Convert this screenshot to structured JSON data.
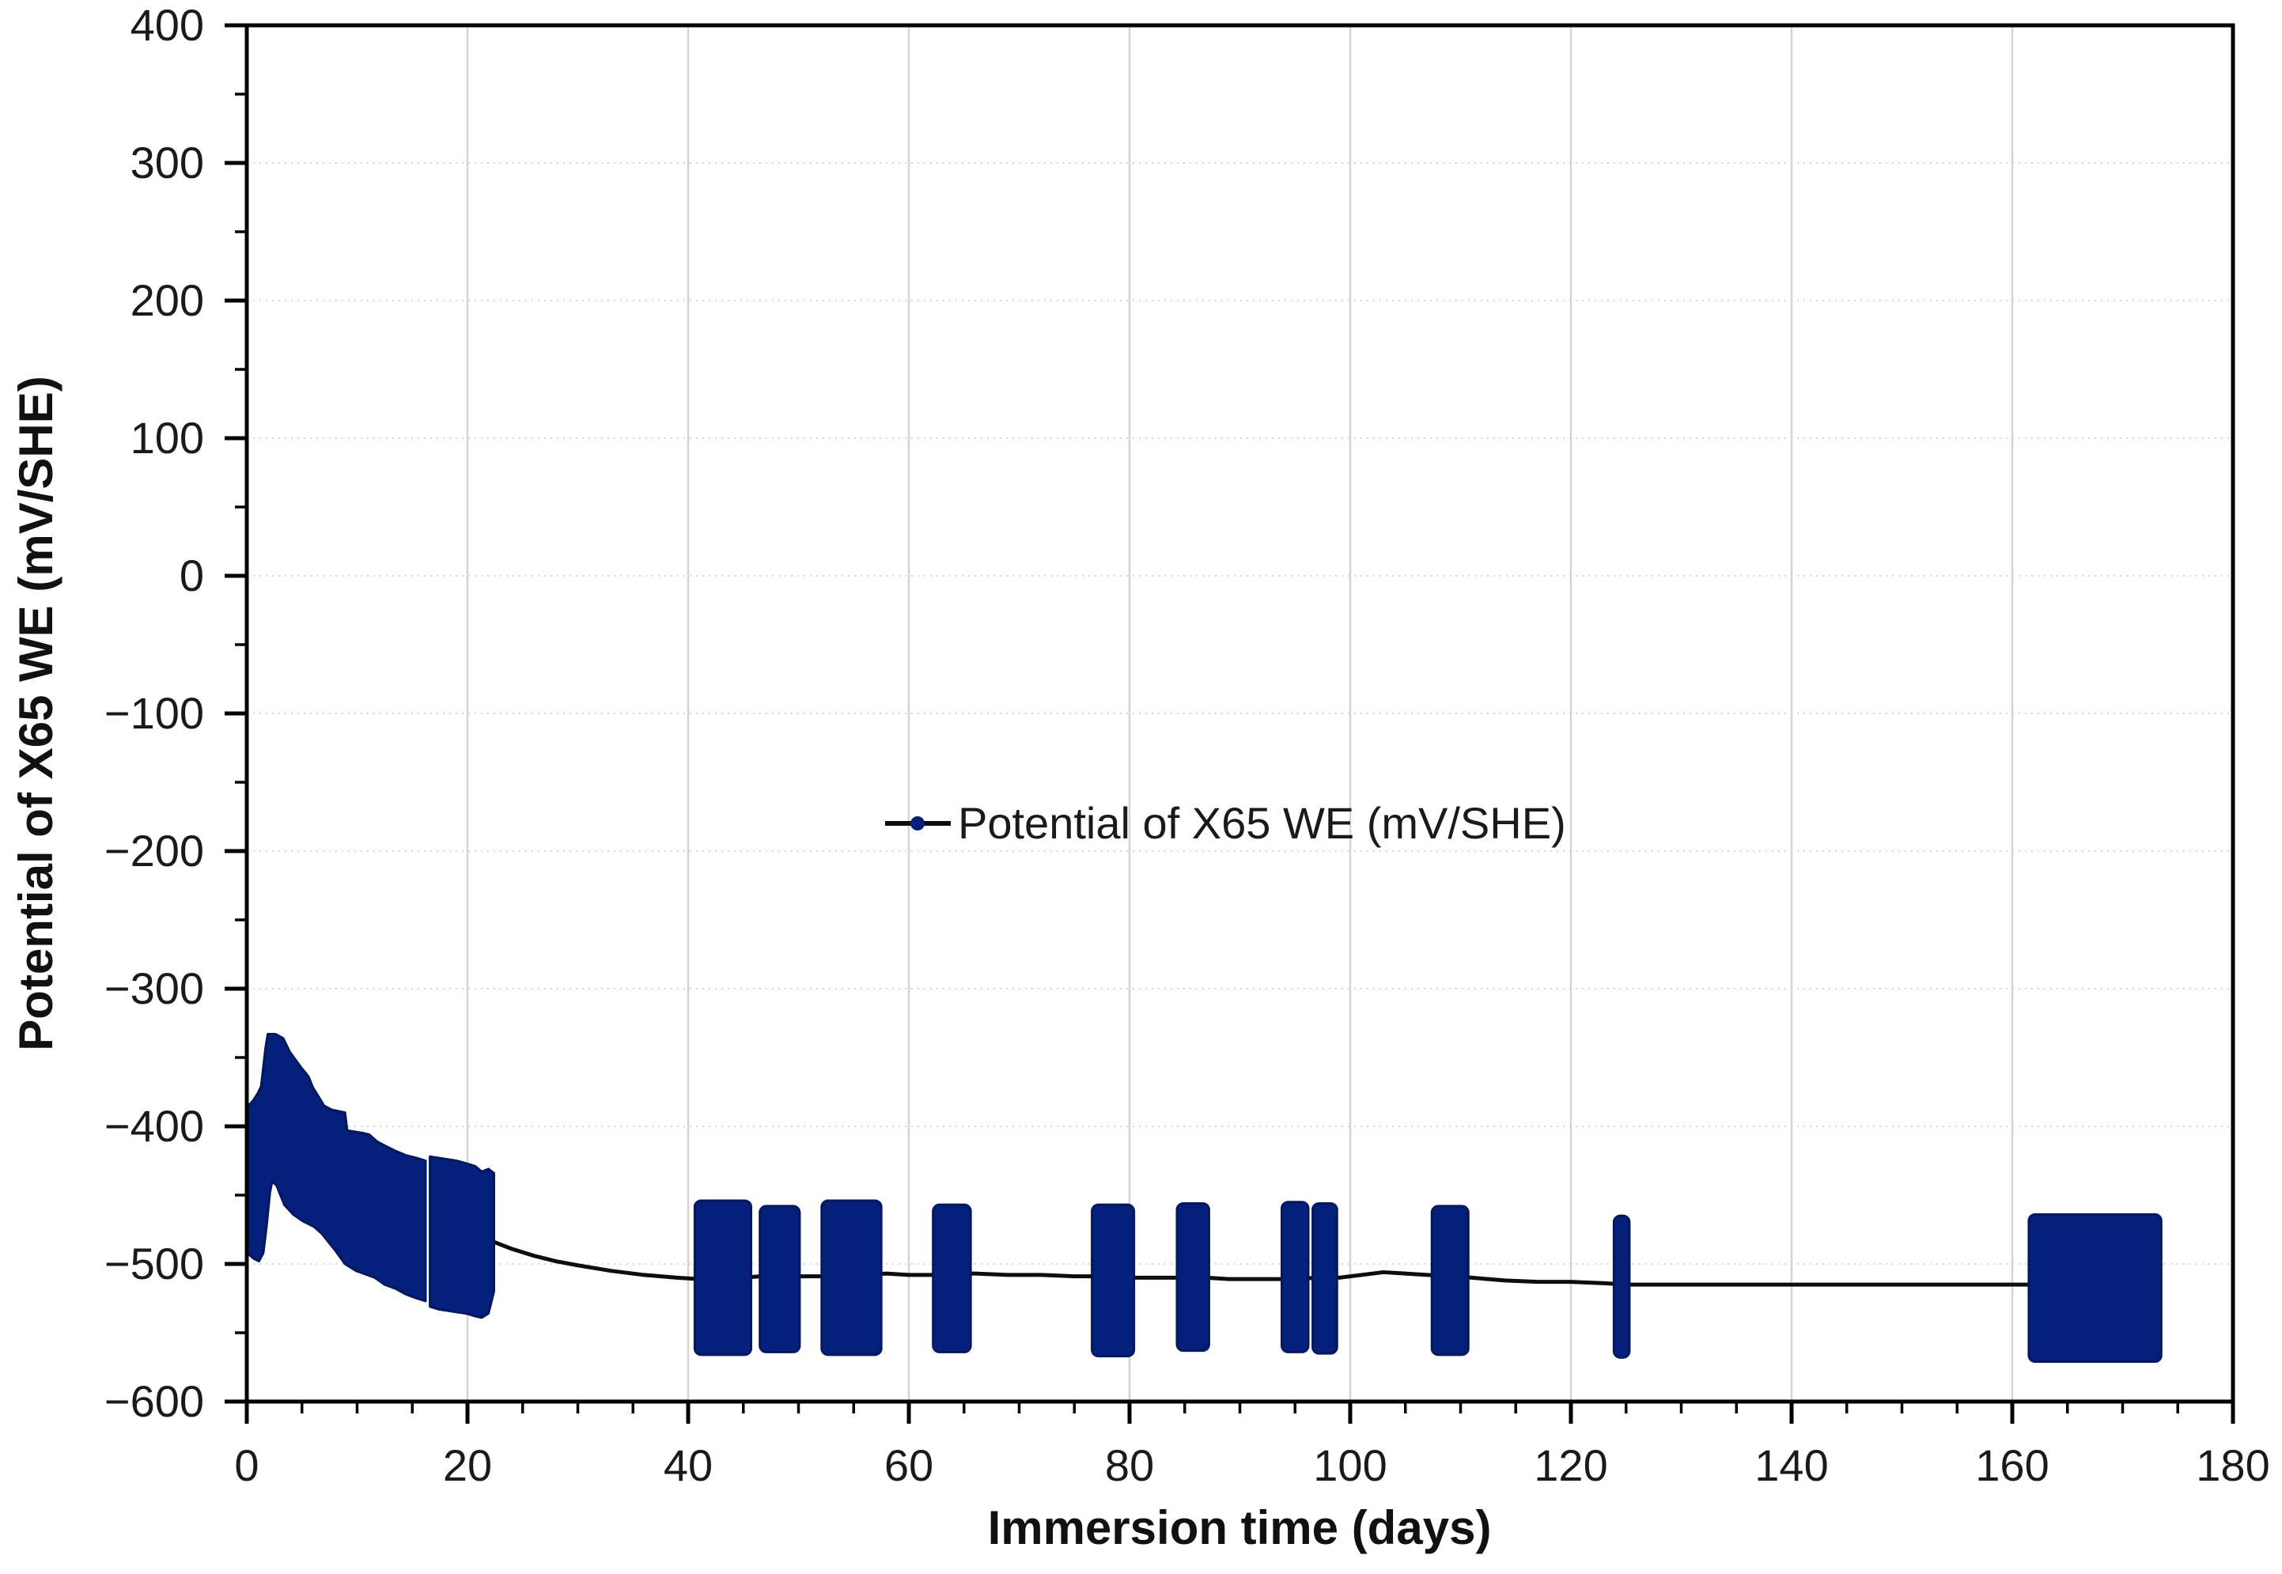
{
  "chart_data": {
    "type": "line",
    "title": "",
    "xlabel": "Immersion time (days)",
    "ylabel": "Potential of X65 WE (mV/SHE)",
    "xlim": [
      0,
      180
    ],
    "ylim": [
      -600,
      400
    ],
    "x_major_ticks": [
      0,
      20,
      40,
      60,
      80,
      100,
      120,
      140,
      160,
      180
    ],
    "x_minor_step": 5,
    "y_major_ticks": [
      400,
      300,
      200,
      100,
      0,
      -100,
      -200,
      -300,
      -400,
      -500,
      -600
    ],
    "y_minor_step": 50,
    "grid": {
      "vertical_style": "solid",
      "horizontal_style": "dotted",
      "color": "#d4d4d4"
    },
    "legend": {
      "label": "Potential of X65 WE (mV/SHE)",
      "marker": "black line with navy dot",
      "location": "center of plot area, above -200 gridline"
    },
    "colors": {
      "series_fill": "#04207a",
      "series_edge": "#03185e",
      "line": "#0d0d0d",
      "axis": "#000000",
      "grid": "#d4d4d4",
      "tick_label": "#1a1a1a",
      "title": "#111111"
    },
    "series": [
      {
        "name": "Potential of X65 WE (mV/SHE)",
        "description": "Dense noisy potential oscillations rendered as solid navy bands/bars; a thin black line of sparse readings connects measurement periods",
        "noise_band_segments": [
          {
            "top": [
              [
                0.05,
                -386
              ],
              [
                0.6,
                -381
              ],
              [
                1.0,
                -376
              ],
              [
                1.3,
                -371
              ],
              [
                1.5,
                -357
              ],
              [
                1.7,
                -343
              ],
              [
                1.9,
                -333
              ],
              [
                2.6,
                -333
              ],
              [
                3.3,
                -336
              ],
              [
                3.9,
                -346
              ],
              [
                4.9,
                -357
              ],
              [
                5.6,
                -364
              ],
              [
                6.0,
                -372
              ],
              [
                6.4,
                -377
              ],
              [
                7.0,
                -385
              ],
              [
                7.7,
                -388
              ],
              [
                8.9,
                -390
              ],
              [
                9.1,
                -403
              ],
              [
                10.6,
                -405
              ],
              [
                11.1,
                -406
              ],
              [
                11.8,
                -411
              ],
              [
                12.5,
                -414
              ],
              [
                13.5,
                -418
              ],
              [
                14.4,
                -421
              ],
              [
                15.4,
                -423
              ],
              [
                16.2,
                -425
              ]
            ],
            "bottom": [
              [
                0.05,
                -492
              ],
              [
                0.6,
                -496
              ],
              [
                1.1,
                -498
              ],
              [
                1.5,
                -492
              ],
              [
                1.8,
                -472
              ],
              [
                2.1,
                -448
              ],
              [
                2.3,
                -440
              ],
              [
                2.7,
                -443
              ],
              [
                3.4,
                -457
              ],
              [
                4.2,
                -464
              ],
              [
                5.1,
                -469
              ],
              [
                6.1,
                -473
              ],
              [
                6.8,
                -478
              ],
              [
                7.5,
                -485
              ],
              [
                8.0,
                -490
              ],
              [
                8.9,
                -500
              ],
              [
                9.9,
                -505
              ],
              [
                10.6,
                -507
              ],
              [
                11.6,
                -510
              ],
              [
                12.5,
                -515
              ],
              [
                13.5,
                -518
              ],
              [
                14.4,
                -522
              ],
              [
                15.4,
                -525
              ],
              [
                16.2,
                -527
              ]
            ]
          },
          {
            "top": [
              [
                16.6,
                -422
              ],
              [
                17.4,
                -423
              ],
              [
                18.2,
                -424
              ],
              [
                19.0,
                -425
              ],
              [
                19.9,
                -427
              ],
              [
                20.7,
                -429
              ],
              [
                21.3,
                -433
              ],
              [
                21.9,
                -431
              ],
              [
                22.4,
                -434
              ]
            ],
            "bottom": [
              [
                16.6,
                -531
              ],
              [
                17.4,
                -533
              ],
              [
                18.2,
                -534
              ],
              [
                19.0,
                -535
              ],
              [
                19.9,
                -536
              ],
              [
                20.7,
                -538
              ],
              [
                21.3,
                -539
              ],
              [
                21.9,
                -536
              ],
              [
                22.4,
                -520
              ]
            ]
          }
        ],
        "noise_bars": [
          {
            "x0": 40.6,
            "x1": 45.7,
            "top": -454,
            "bottom": -566
          },
          {
            "x0": 46.5,
            "x1": 50.1,
            "top": -458,
            "bottom": -564
          },
          {
            "x0": 52.1,
            "x1": 57.5,
            "top": -454,
            "bottom": -566
          },
          {
            "x0": 62.2,
            "x1": 65.6,
            "top": -457,
            "bottom": -564
          },
          {
            "x0": 76.6,
            "x1": 80.4,
            "top": -457,
            "bottom": -567
          },
          {
            "x0": 84.3,
            "x1": 87.2,
            "top": -456,
            "bottom": -563
          },
          {
            "x0": 93.8,
            "x1": 96.2,
            "top": -455,
            "bottom": -564
          },
          {
            "x0": 96.6,
            "x1": 98.8,
            "top": -456,
            "bottom": -565
          },
          {
            "x0": 107.4,
            "x1": 110.7,
            "top": -458,
            "bottom": -566
          },
          {
            "x0": 123.9,
            "x1": 125.3,
            "top": -465,
            "bottom": -568
          },
          {
            "x0": 161.5,
            "x1": 173.5,
            "top": -464,
            "bottom": -571
          }
        ],
        "line_points": [
          [
            22.4,
            -484
          ],
          [
            24,
            -489
          ],
          [
            26,
            -494
          ],
          [
            28,
            -498
          ],
          [
            30,
            -501
          ],
          [
            33,
            -505
          ],
          [
            36,
            -508
          ],
          [
            39,
            -510
          ],
          [
            41,
            -511
          ],
          [
            43,
            -511
          ],
          [
            45,
            -510
          ],
          [
            46.5,
            -509
          ],
          [
            48,
            -508
          ],
          [
            50,
            -509
          ],
          [
            52,
            -509
          ],
          [
            54,
            -508
          ],
          [
            56,
            -508
          ],
          [
            58,
            -507
          ],
          [
            60,
            -508
          ],
          [
            62,
            -508
          ],
          [
            64,
            -507
          ],
          [
            66,
            -507
          ],
          [
            69,
            -508
          ],
          [
            72,
            -508
          ],
          [
            75,
            -509
          ],
          [
            77,
            -509
          ],
          [
            79,
            -510
          ],
          [
            81,
            -510
          ],
          [
            83,
            -510
          ],
          [
            85,
            -510
          ],
          [
            87,
            -510
          ],
          [
            89,
            -511
          ],
          [
            91,
            -511
          ],
          [
            93,
            -511
          ],
          [
            95,
            -511
          ],
          [
            97,
            -510
          ],
          [
            99,
            -510
          ],
          [
            101,
            -508
          ],
          [
            103,
            -506
          ],
          [
            105,
            -507
          ],
          [
            107,
            -508
          ],
          [
            109,
            -509
          ],
          [
            111,
            -510
          ],
          [
            114,
            -512
          ],
          [
            117,
            -513
          ],
          [
            120,
            -513
          ],
          [
            123,
            -514
          ],
          [
            125,
            -515
          ],
          [
            128,
            -515
          ],
          [
            132,
            -515
          ],
          [
            136,
            -515
          ],
          [
            140,
            -515
          ],
          [
            145,
            -515
          ],
          [
            150,
            -515
          ],
          [
            155,
            -515
          ],
          [
            158,
            -515
          ],
          [
            161.6,
            -515
          ]
        ]
      }
    ]
  }
}
